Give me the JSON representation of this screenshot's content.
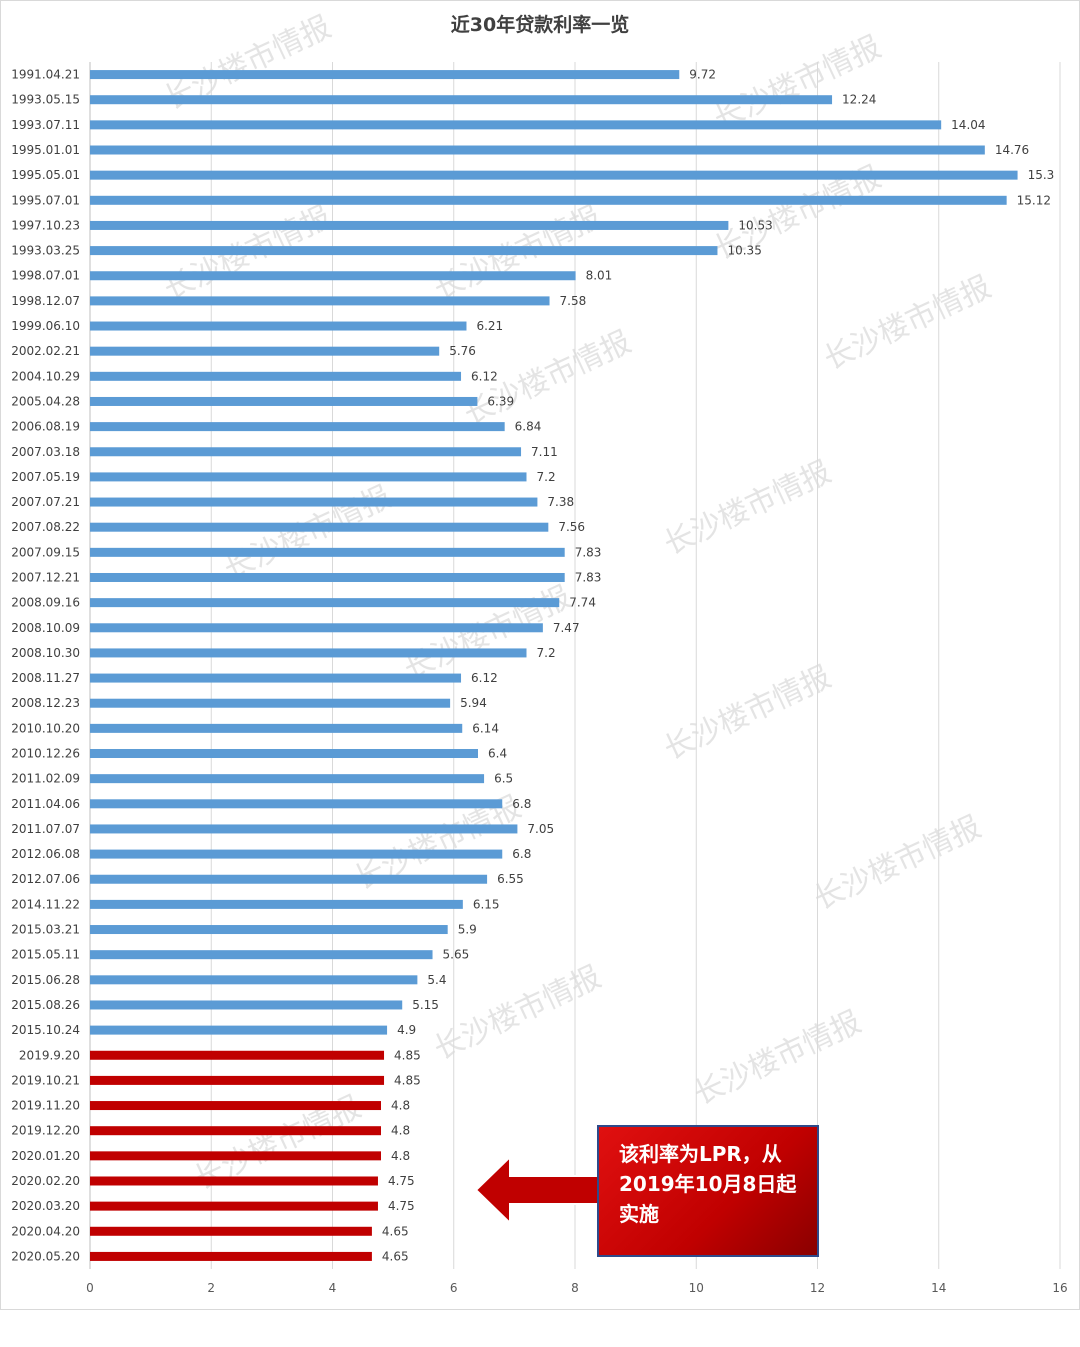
{
  "chart_data": {
    "type": "bar",
    "orientation": "horizontal",
    "title": "近30年贷款利率一览",
    "xlabel": "",
    "ylabel": "",
    "xlim": [
      0,
      16
    ],
    "x_ticks": [
      "0",
      "2",
      "4",
      "6",
      "8",
      "10",
      "12",
      "14",
      "16"
    ],
    "grid": "vertical gridlines on",
    "colors": {
      "standard": "#5b9bd5",
      "lpr": "#c00000"
    },
    "categories": [
      "1991.04.21",
      "1993.05.15",
      "1993.07.11",
      "1995.01.01",
      "1995.05.01",
      "1995.07.01",
      "1997.10.23",
      "1993.03.25",
      "1998.07.01",
      "1998.12.07",
      "1999.06.10",
      "2002.02.21",
      "2004.10.29",
      "2005.04.28",
      "2006.08.19",
      "2007.03.18",
      "2007.05.19",
      "2007.07.21",
      "2007.08.22",
      "2007.09.15",
      "2007.12.21",
      "2008.09.16",
      "2008.10.09",
      "2008.10.30",
      "2008.11.27",
      "2008.12.23",
      "2010.10.20",
      "2010.12.26",
      "2011.02.09",
      "2011.04.06",
      "2011.07.07",
      "2012.06.08",
      "2012.07.06",
      "2014.11.22",
      "2015.03.21",
      "2015.05.11",
      "2015.06.28",
      "2015.08.26",
      "2015.10.24",
      "2019.9.20",
      "2019.10.21",
      "2019.11.20",
      "2019.12.20",
      "2020.01.20",
      "2020.02.20",
      "2020.03.20",
      "2020.04.20",
      "2020.05.20"
    ],
    "values": [
      9.72,
      12.24,
      14.04,
      14.76,
      15.3,
      15.12,
      10.53,
      10.35,
      8.01,
      7.58,
      6.21,
      5.76,
      6.12,
      6.39,
      6.84,
      7.11,
      7.2,
      7.38,
      7.56,
      7.83,
      7.83,
      7.74,
      7.47,
      7.2,
      6.12,
      5.94,
      6.14,
      6.4,
      6.5,
      6.8,
      7.05,
      6.8,
      6.55,
      6.15,
      5.9,
      5.65,
      5.4,
      5.15,
      4.9,
      4.85,
      4.85,
      4.8,
      4.8,
      4.8,
      4.75,
      4.75,
      4.65,
      4.65
    ],
    "lpr_start_index": 39
  },
  "callout": {
    "text": "该利率为LPR，从\n2019年10月8日起\n实施"
  },
  "watermark": "长沙楼市情报"
}
